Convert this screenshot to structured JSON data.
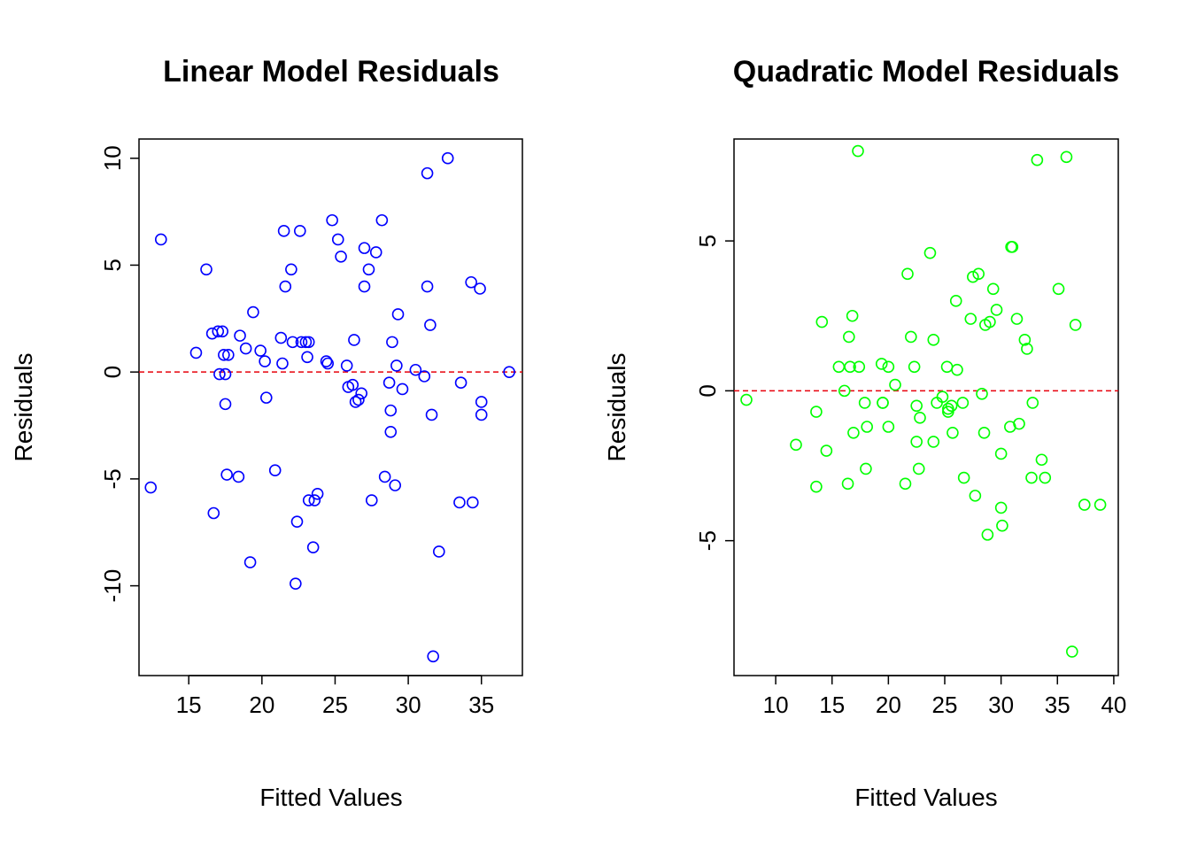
{
  "chart_data": [
    {
      "type": "scatter",
      "title": "Linear Model Residuals",
      "xlabel": "Fitted Values",
      "ylabel": "Residuals",
      "xlim": [
        11.6,
        37.8
      ],
      "ylim": [
        -14.2,
        10.9
      ],
      "xticks": [
        15,
        20,
        25,
        30,
        35
      ],
      "yticks": [
        -10,
        -5,
        0,
        5,
        10
      ],
      "xtick_labels": [
        "15",
        "20",
        "25",
        "30",
        "35"
      ],
      "ytick_labels": [
        "-10",
        "-5",
        "0",
        "5",
        "10"
      ],
      "grid": false,
      "legend": "none",
      "reference_line": {
        "y": 0,
        "color": "#e8000b",
        "style": "dashed"
      },
      "marker_color": "#0000ff",
      "series": [
        {
          "x": [
            12.4,
            13.1,
            15.5,
            16.2,
            16.6,
            16.7,
            17.0,
            17.1,
            17.3,
            17.4,
            17.5,
            17.5,
            17.6,
            17.7,
            18.4,
            18.5,
            18.9,
            19.2,
            19.4,
            19.9,
            20.2,
            20.3,
            20.9,
            21.3,
            21.4,
            21.5,
            21.6,
            22.0,
            22.1,
            22.3,
            22.4,
            22.6,
            22.7,
            23.0,
            23.1,
            23.2,
            23.2,
            23.5,
            23.6,
            23.8,
            24.4,
            24.5,
            24.8,
            25.2,
            25.4,
            25.8,
            25.9,
            26.2,
            26.3,
            26.4,
            26.6,
            26.8,
            27.0,
            27.0,
            27.3,
            27.5,
            27.8,
            28.2,
            28.4,
            28.7,
            28.8,
            28.8,
            28.9,
            29.1,
            29.2,
            29.3,
            29.6,
            30.5,
            31.1,
            31.3,
            31.3,
            31.5,
            31.6,
            31.7,
            32.1,
            32.7,
            33.5,
            33.6,
            34.3,
            34.4,
            34.9,
            35.0,
            35.0,
            36.9
          ],
          "y": [
            -5.4,
            6.2,
            0.9,
            4.8,
            1.8,
            -6.6,
            1.9,
            -0.1,
            1.9,
            0.8,
            -0.1,
            -1.5,
            -4.8,
            0.8,
            -4.9,
            1.7,
            1.1,
            -8.9,
            2.8,
            1.0,
            0.5,
            -1.2,
            -4.6,
            1.6,
            0.4,
            6.6,
            4.0,
            4.8,
            1.4,
            -9.9,
            -7.0,
            6.6,
            1.4,
            1.4,
            0.7,
            1.4,
            -6.0,
            -8.2,
            -6.0,
            -5.7,
            0.5,
            0.4,
            7.1,
            6.2,
            5.4,
            0.3,
            -0.7,
            -0.6,
            1.5,
            -1.4,
            -1.3,
            -1.0,
            5.8,
            4.0,
            4.8,
            -6.0,
            5.6,
            7.1,
            -4.9,
            -0.5,
            -1.8,
            -2.8,
            1.4,
            -5.3,
            0.3,
            2.7,
            -0.8,
            0.1,
            -0.2,
            9.3,
            4.0,
            2.2,
            -2.0,
            -13.3,
            -8.4,
            10.0,
            -6.1,
            -0.5,
            4.2,
            -6.1,
            3.9,
            -1.4,
            -2.0,
            0.0
          ]
        }
      ]
    },
    {
      "type": "scatter",
      "title": "Quadratic Model Residuals",
      "xlabel": "Fitted Values",
      "ylabel": "Residuals",
      "xlim": [
        6.3,
        40.4
      ],
      "ylim": [
        -9.5,
        8.4
      ],
      "xticks": [
        10,
        15,
        20,
        25,
        30,
        35,
        40
      ],
      "yticks": [
        -5,
        0,
        5
      ],
      "xtick_labels": [
        "10",
        "15",
        "20",
        "25",
        "30",
        "35",
        "40"
      ],
      "ytick_labels": [
        "-5",
        "0",
        "5"
      ],
      "grid": false,
      "legend": "none",
      "reference_line": {
        "y": 0,
        "color": "#e8000b",
        "style": "dashed"
      },
      "marker_color": "#00ff00",
      "series": [
        {
          "x": [
            7.4,
            11.8,
            13.6,
            13.6,
            14.1,
            14.5,
            15.6,
            16.1,
            16.4,
            16.5,
            16.6,
            16.8,
            16.9,
            17.3,
            17.4,
            17.9,
            18.0,
            18.1,
            19.4,
            19.5,
            19.5,
            20.0,
            20.0,
            20.6,
            21.5,
            21.7,
            22.0,
            22.3,
            22.5,
            22.5,
            22.7,
            22.8,
            23.7,
            24.0,
            24.0,
            24.3,
            24.8,
            25.2,
            25.3,
            25.3,
            25.6,
            25.7,
            26.0,
            26.1,
            26.6,
            26.7,
            27.3,
            27.5,
            27.7,
            28.0,
            28.3,
            28.5,
            28.6,
            28.8,
            29.0,
            29.3,
            29.6,
            30.0,
            30.0,
            30.1,
            30.8,
            30.9,
            31.0,
            31.4,
            31.6,
            32.1,
            32.3,
            32.7,
            32.8,
            33.2,
            33.6,
            33.9,
            35.1,
            35.8,
            36.3,
            36.6,
            37.4,
            38.8
          ],
          "y": [
            -0.3,
            -1.8,
            -0.7,
            -3.2,
            2.3,
            -2.0,
            0.8,
            0.0,
            -3.1,
            1.8,
            0.8,
            2.5,
            -1.4,
            8.0,
            0.8,
            -0.4,
            -2.6,
            -1.2,
            0.9,
            -0.4,
            -0.4,
            0.8,
            -1.2,
            0.2,
            -3.1,
            3.9,
            1.8,
            0.8,
            -0.5,
            -1.7,
            -2.6,
            -0.9,
            4.6,
            1.7,
            -1.7,
            -0.4,
            -0.2,
            0.8,
            -0.6,
            -0.7,
            -0.5,
            -1.4,
            3.0,
            0.7,
            -0.4,
            -2.9,
            2.4,
            3.8,
            -3.5,
            3.9,
            -0.1,
            -1.4,
            2.2,
            -4.8,
            2.3,
            3.4,
            2.7,
            -2.1,
            -3.9,
            -4.5,
            -1.2,
            4.8,
            4.8,
            2.4,
            -1.1,
            1.7,
            1.4,
            -2.9,
            -0.4,
            7.7,
            -2.3,
            -2.9,
            3.4,
            7.8,
            -8.7,
            2.2,
            -3.8,
            -3.8
          ]
        }
      ]
    }
  ]
}
